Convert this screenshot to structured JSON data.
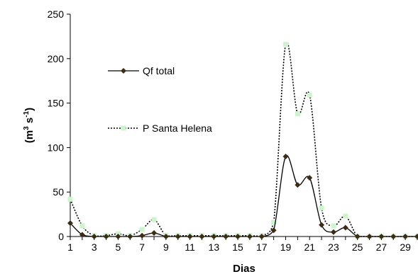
{
  "chart_data": {
    "type": "line",
    "xlabel": "Dias",
    "ylabel": {
      "base": "(m",
      "sup1": "3",
      "mid": " s",
      "sup2": "-1",
      "end": ")"
    },
    "ylim": [
      0,
      250
    ],
    "yticks": [
      0,
      50,
      100,
      150,
      200,
      250
    ],
    "xlim": [
      1,
      30
    ],
    "xticks": [
      1,
      3,
      5,
      7,
      9,
      11,
      13,
      15,
      17,
      19,
      21,
      23,
      25,
      27,
      29
    ],
    "grid": false,
    "x": [
      1,
      2,
      3,
      4,
      5,
      6,
      7,
      8,
      9,
      10,
      11,
      12,
      13,
      14,
      15,
      16,
      17,
      18,
      19,
      20,
      21,
      22,
      23,
      24,
      25,
      26,
      27,
      28,
      29,
      30
    ],
    "series": [
      {
        "name": "Qf total",
        "style": "solid",
        "color": "#000000",
        "marker": "diamond",
        "marker_color": "#3d2b14",
        "values": [
          15,
          2,
          0,
          0,
          0,
          0,
          1,
          4,
          0,
          0,
          0,
          0,
          0,
          0,
          0,
          0,
          0,
          7,
          90,
          58,
          66,
          13,
          5,
          10,
          0,
          0,
          0,
          0,
          0,
          0
        ]
      },
      {
        "name": "P Santa Helena",
        "style": "dotted",
        "color": "#000000",
        "marker": "square",
        "marker_color": "#ccf5cc",
        "values": [
          42,
          12,
          1,
          1,
          3,
          1,
          8,
          19,
          1,
          1,
          1,
          1,
          1,
          1,
          1,
          1,
          1,
          16,
          216,
          138,
          159,
          32,
          12,
          23,
          0,
          0,
          0,
          0,
          0,
          0
        ]
      }
    ],
    "legend_placement": "upper-left inside"
  }
}
